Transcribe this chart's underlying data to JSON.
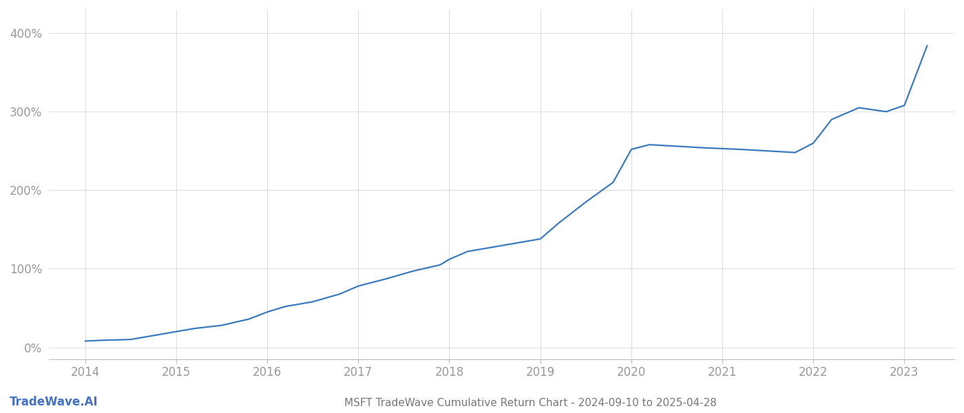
{
  "title": "MSFT TradeWave Cumulative Return Chart - 2024-09-10 to 2025-04-28",
  "watermark": "TradeWave.AI",
  "line_color": "#3a7abf",
  "background_color": "#ffffff",
  "grid_color": "#d8d8d8",
  "axis_label_color": "#999999",
  "title_color": "#777777",
  "watermark_color": "#4472C4",
  "x_values": [
    2014.0,
    2014.2,
    2014.5,
    2014.7,
    2015.0,
    2015.2,
    2015.5,
    2015.8,
    2016.0,
    2016.2,
    2016.5,
    2016.8,
    2017.0,
    2017.3,
    2017.6,
    2017.9,
    2018.0,
    2018.2,
    2018.5,
    2018.7,
    2019.0,
    2019.2,
    2019.5,
    2019.8,
    2020.0,
    2020.2,
    2020.5,
    2020.8,
    2021.0,
    2021.2,
    2021.5,
    2021.8,
    2022.0,
    2022.2,
    2022.5,
    2022.8,
    2023.0,
    2023.25
  ],
  "y_values": [
    8,
    9,
    10,
    14,
    20,
    24,
    28,
    36,
    45,
    52,
    58,
    68,
    78,
    87,
    97,
    105,
    112,
    122,
    128,
    132,
    138,
    158,
    185,
    210,
    252,
    258,
    256,
    254,
    253,
    252,
    250,
    248,
    260,
    290,
    305,
    300,
    308,
    384
  ],
  "xlim": [
    2013.6,
    2023.55
  ],
  "ylim": [
    -15,
    430
  ],
  "yticks": [
    0,
    100,
    200,
    300,
    400
  ],
  "ytick_labels": [
    "0%",
    "100%",
    "200%",
    "300%",
    "400%"
  ],
  "xticks": [
    2014,
    2015,
    2016,
    2017,
    2018,
    2019,
    2020,
    2021,
    2022,
    2023
  ],
  "line_width": 1.6,
  "fig_width": 14.0,
  "fig_height": 6.0,
  "title_fontsize": 11,
  "tick_fontsize": 12,
  "watermark_fontsize": 12
}
